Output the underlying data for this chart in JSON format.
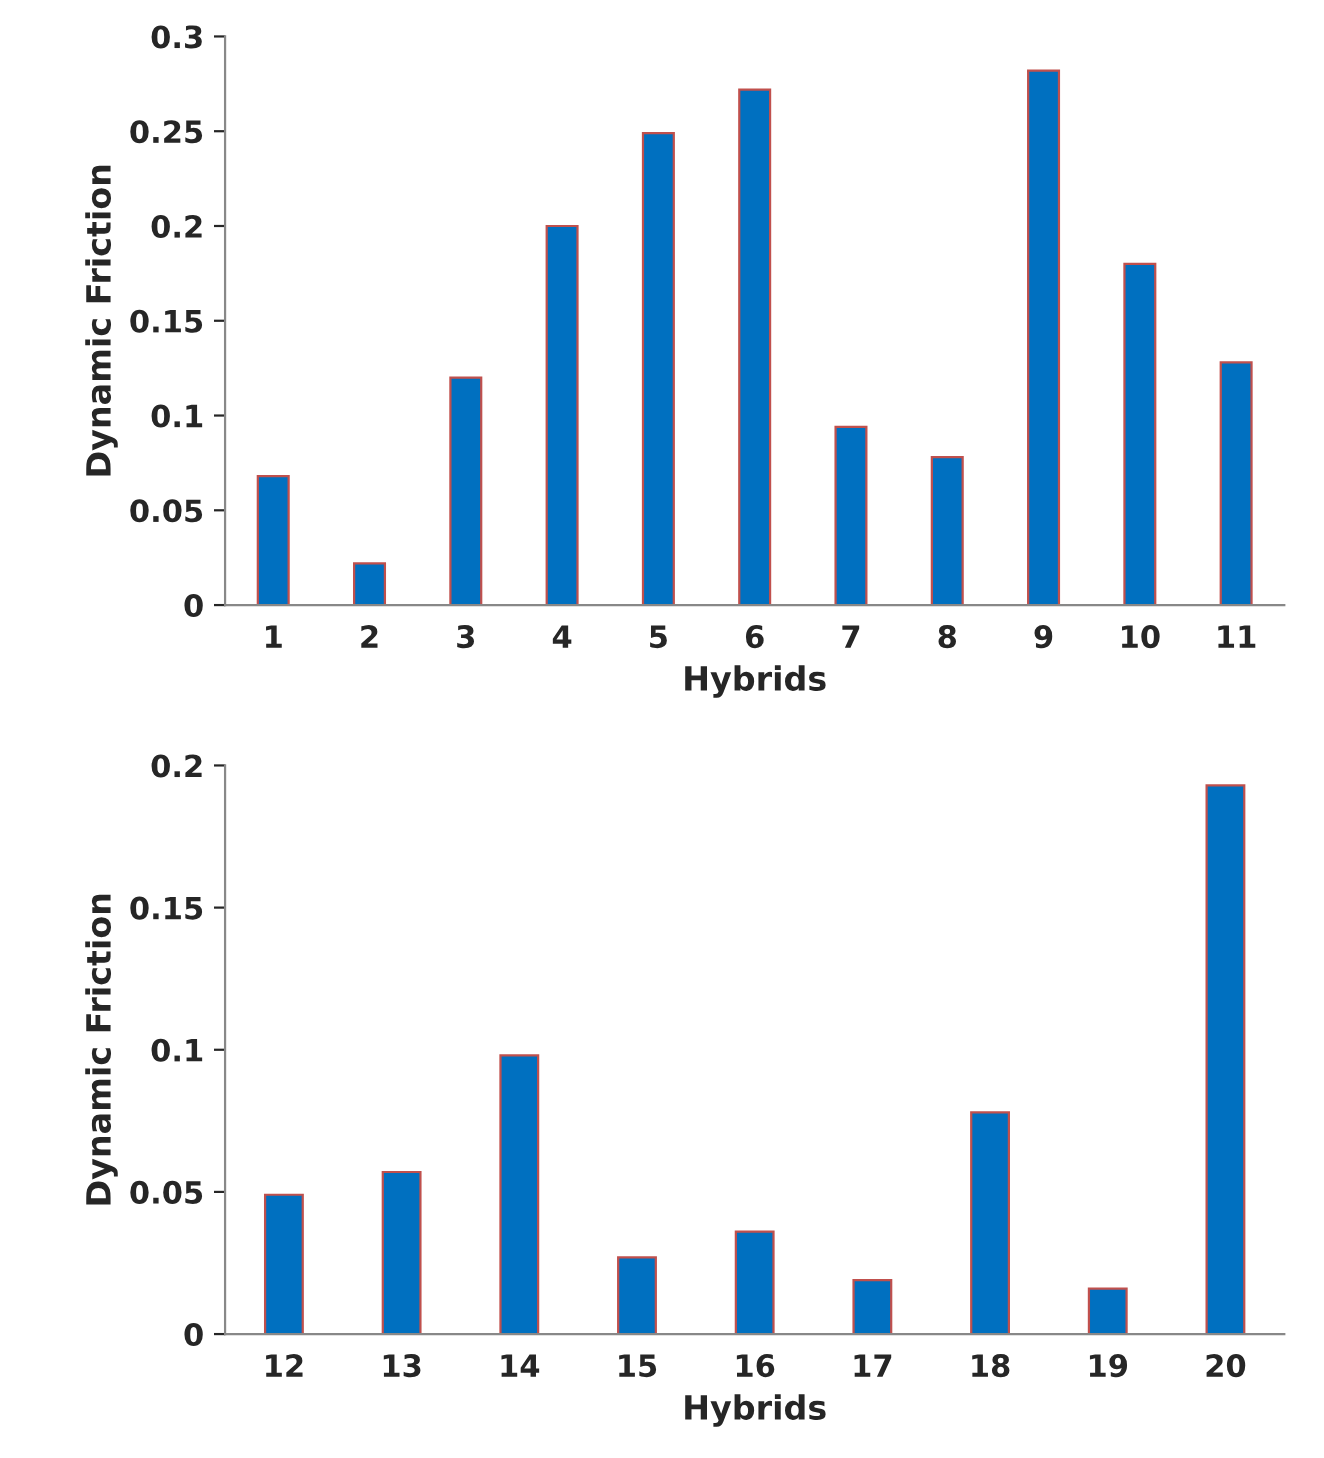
{
  "chart_data": [
    {
      "type": "bar",
      "xlabel": "Hybrids",
      "ylabel": "Dynamic Friction",
      "categories": [
        "1",
        "2",
        "3",
        "4",
        "5",
        "6",
        "7",
        "8",
        "9",
        "10",
        "11"
      ],
      "values": [
        0.068,
        0.022,
        0.12,
        0.2,
        0.249,
        0.272,
        0.094,
        0.078,
        0.282,
        0.18,
        0.128
      ],
      "color": "#0070c0",
      "ylim": [
        0,
        0.3
      ],
      "yticks": [
        {
          "value": 0,
          "label": "0"
        },
        0.05,
        0.1,
        0.15,
        0.2,
        0.25,
        0.3
      ],
      "grid": false,
      "legend": false
    },
    {
      "type": "bar",
      "xlabel": "Hybrids",
      "ylabel": "Dynamic Friction",
      "categories": [
        "12",
        "13",
        "14",
        "15",
        "16",
        "17",
        "18",
        "19",
        "20"
      ],
      "values": [
        0.049,
        0.057,
        0.098,
        0.027,
        0.036,
        0.019,
        0.078,
        0.016,
        0.193
      ],
      "color": "#0070c0",
      "ylim": [
        0,
        0.2
      ],
      "yticks": [
        {
          "value": 0,
          "label": "0"
        },
        0.05,
        0.1,
        0.15,
        0.2
      ],
      "grid": false,
      "legend": false
    }
  ]
}
